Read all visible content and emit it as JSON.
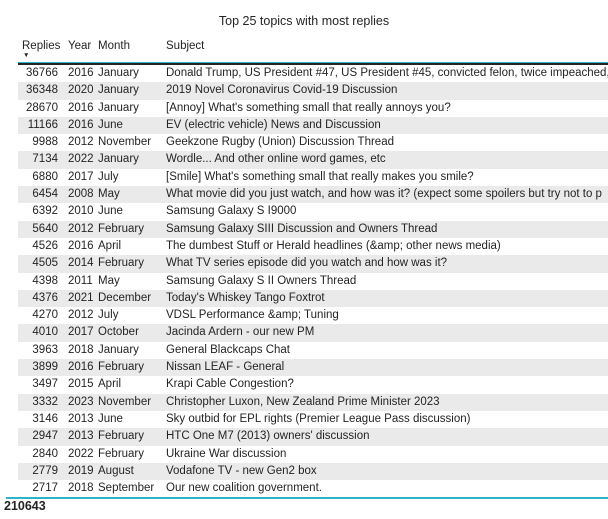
{
  "title": "Top 25 topics with most replies",
  "chart_data": {
    "type": "table",
    "title": "Top 25 topics with most replies",
    "columns": [
      "Replies",
      "Year",
      "Month",
      "Subject"
    ],
    "sort": {
      "column": "Replies",
      "direction": "descending"
    },
    "rows": [
      [
        "36766",
        "2016",
        "January",
        "Donald Trump, US President #47, US President #45, convicted felon, twice impeached,"
      ],
      [
        "36348",
        "2020",
        "January",
        "2019 Novel Coronavirus Covid-19 Discussion"
      ],
      [
        "28670",
        "2016",
        "January",
        "[Annoy] What's something small that really annoys you?"
      ],
      [
        "11166",
        "2016",
        "June",
        "EV (electric vehicle) News and Discussion"
      ],
      [
        "9988",
        "2012",
        "November",
        "Geekzone Rugby (Union) Discussion Thread"
      ],
      [
        "7134",
        "2022",
        "January",
        "Wordle... And other online word games, etc"
      ],
      [
        "6880",
        "2017",
        "July",
        "[Smile] What's something small that really makes you smile?"
      ],
      [
        "6454",
        "2008",
        "May",
        "What movie did you just watch, and how was it? (expect some spoilers but try not to p"
      ],
      [
        "6392",
        "2010",
        "June",
        "Samsung Galaxy S I9000"
      ],
      [
        "5640",
        "2012",
        "February",
        "Samsung Galaxy SIII Discussion and Owners Thread"
      ],
      [
        "4526",
        "2016",
        "April",
        "The dumbest Stuff or Herald headlines (&amp; other news media)"
      ],
      [
        "4505",
        "2014",
        "February",
        "What TV series episode did you watch and how was it?"
      ],
      [
        "4398",
        "2011",
        "May",
        "Samsung Galaxy S II Owners Thread"
      ],
      [
        "4376",
        "2021",
        "December",
        "Today's Whiskey Tango Foxtrot"
      ],
      [
        "4270",
        "2012",
        "July",
        "VDSL Performance &amp; Tuning"
      ],
      [
        "4010",
        "2017",
        "October",
        "Jacinda Ardern - our new PM"
      ],
      [
        "3963",
        "2018",
        "January",
        "General Blackcaps Chat"
      ],
      [
        "3899",
        "2016",
        "February",
        "Nissan LEAF - General"
      ],
      [
        "3497",
        "2015",
        "April",
        "Krapi Cable Congestion?"
      ],
      [
        "3332",
        "2023",
        "November",
        "Christopher Luxon, New Zealand Prime Minister 2023"
      ],
      [
        "3146",
        "2013",
        "June",
        "Sky outbid for EPL rights (Premier League Pass discussion)"
      ],
      [
        "2947",
        "2013",
        "February",
        "HTC One M7 (2013) owners' discussion"
      ],
      [
        "2840",
        "2022",
        "February",
        "Ukraine War discussion"
      ],
      [
        "2779",
        "2019",
        "August",
        "Vodafone TV - new Gen2 box"
      ],
      [
        "2717",
        "2018",
        "September",
        "Our new coalition government."
      ]
    ],
    "total_replies": "210643",
    "sort_icon": "▼"
  },
  "colors": {
    "accent_line": "#2ab5c7",
    "header_rule": "#252423",
    "alt_row": "#eaeaea",
    "text": "#252423"
  }
}
